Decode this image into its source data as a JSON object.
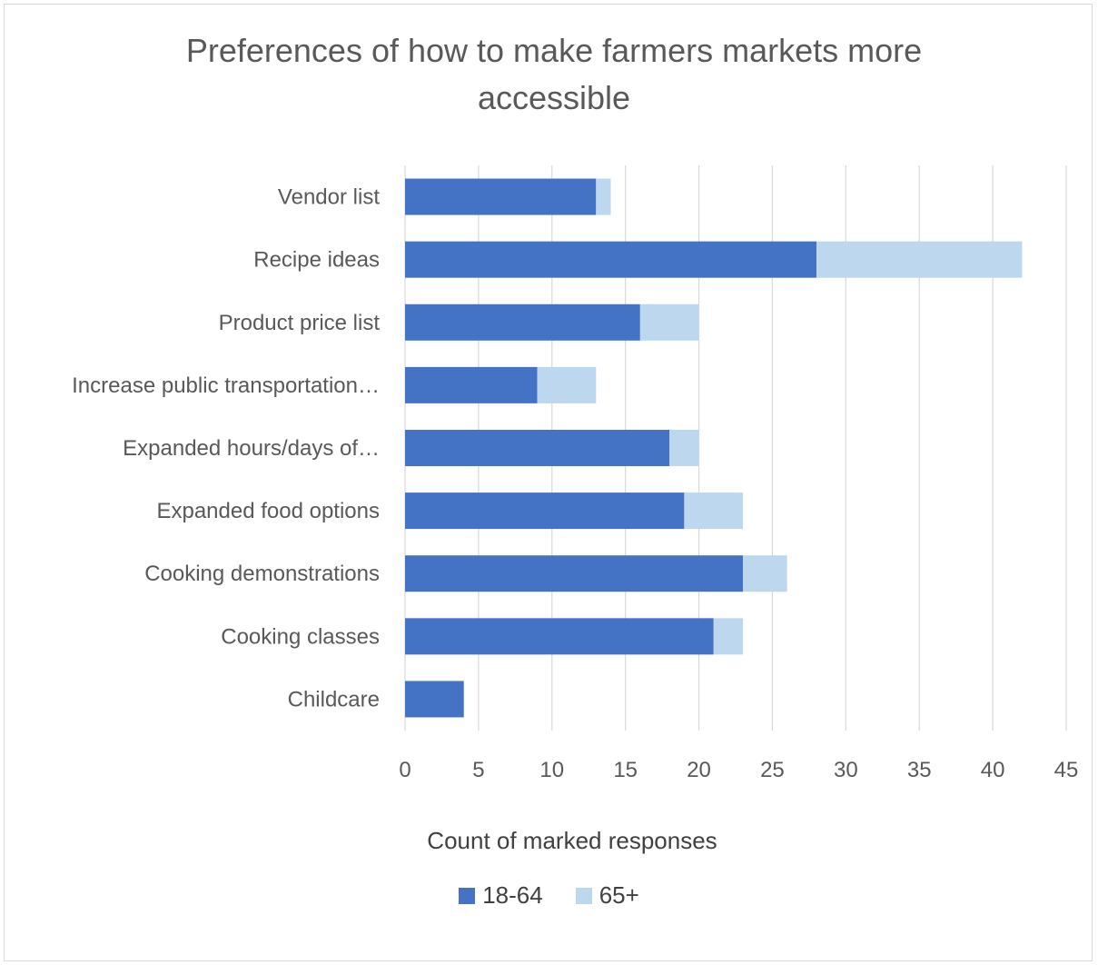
{
  "chart_data": {
    "type": "bar",
    "orientation": "horizontal",
    "stacked": true,
    "title": "Preferences of how to make farmers markets more accessible",
    "xlabel": "Count of marked responses",
    "ylabel": "",
    "categories": [
      "Vendor list",
      "Recipe ideas",
      "Product price list",
      "Increase public transportation…",
      "Expanded hours/days of…",
      "Expanded food options",
      "Cooking demonstrations",
      "Cooking classes",
      "Childcare"
    ],
    "series": [
      {
        "name": "18-64",
        "color": "#4472c4",
        "values": [
          13,
          28,
          16,
          9,
          18,
          19,
          23,
          21,
          4
        ]
      },
      {
        "name": "65+",
        "color": "#bdd7ee",
        "values": [
          1,
          14,
          4,
          4,
          2,
          4,
          3,
          2,
          0
        ]
      }
    ],
    "xlim": [
      0,
      45
    ],
    "xticks": [
      "0",
      "5",
      "10",
      "15",
      "20",
      "25",
      "30",
      "35",
      "40",
      "45"
    ],
    "grid": "vertical",
    "legend_position": "bottom"
  }
}
